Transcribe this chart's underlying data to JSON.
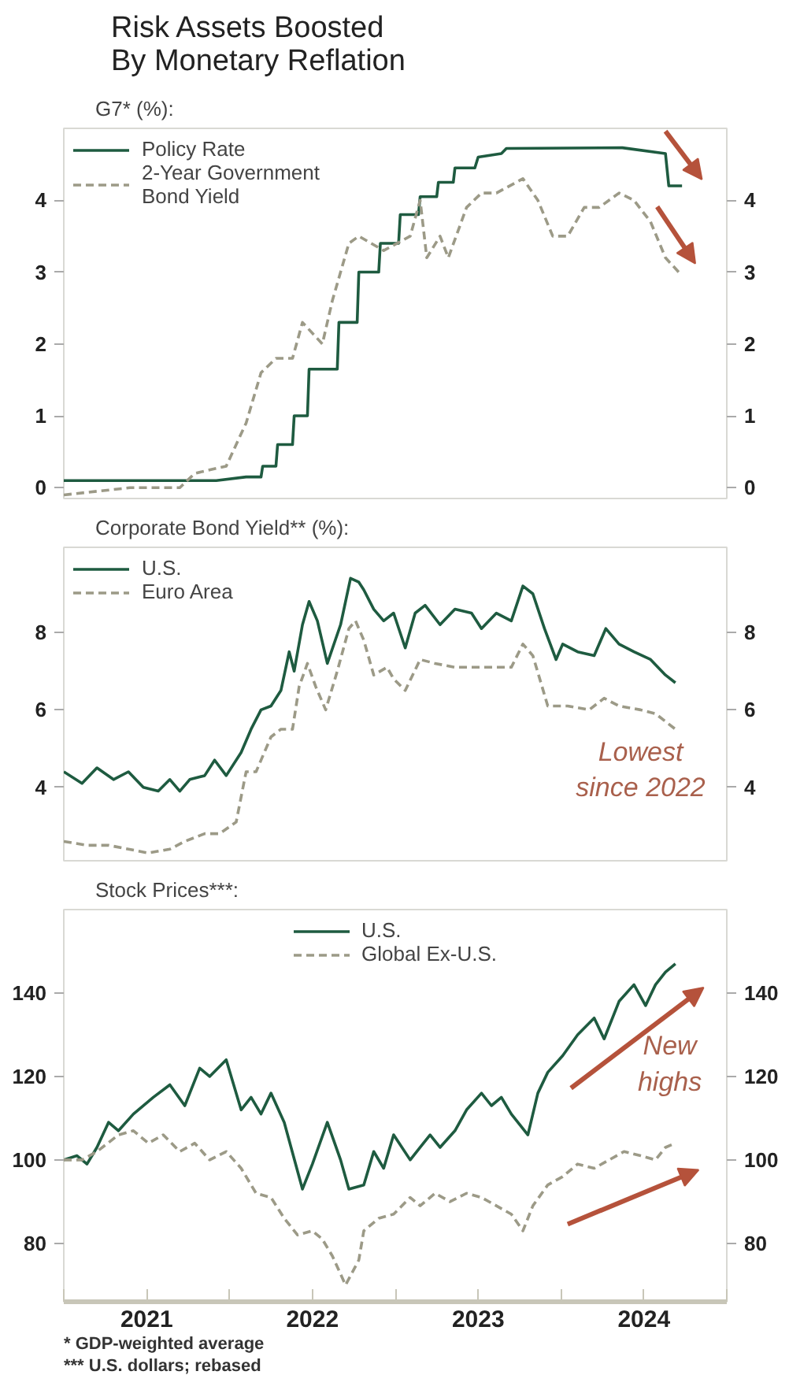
{
  "chart_data": [
    {
      "type": "line",
      "title": "Risk Assets Boosted\nBy Monetary Reflation",
      "subtitle": "G7* (%):",
      "xlim": [
        2021,
        2025
      ],
      "ylim": [
        -0.15,
        5.0
      ],
      "yticks": [
        0,
        1,
        2,
        3,
        4
      ],
      "y2lim": [
        -0.15,
        5.0
      ],
      "y2ticks": [
        0,
        1,
        2,
        3,
        4
      ],
      "tick_labels": "y",
      "legend": "top left",
      "series": [
        {
          "name": "Policy Rate",
          "color": "#1e5b40",
          "line_style": "solid",
          "x": [
            2021.0,
            2021.92,
            2022.1,
            2022.19,
            2022.2,
            2022.28,
            2022.29,
            2022.38,
            2022.39,
            2022.47,
            2022.48,
            2022.65,
            2022.66,
            2022.77,
            2022.78,
            2022.9,
            2022.91,
            2023.02,
            2023.03,
            2023.14,
            2023.15,
            2023.25,
            2023.26,
            2023.35,
            2023.36,
            2023.48,
            2023.5,
            2023.64,
            2023.67,
            2024.37,
            2024.63,
            2024.65,
            2024.73
          ],
          "values": [
            0.1,
            0.1,
            0.15,
            0.15,
            0.3,
            0.3,
            0.6,
            0.6,
            1.0,
            1.0,
            1.65,
            1.65,
            2.3,
            2.3,
            3.0,
            3.0,
            3.4,
            3.4,
            3.8,
            3.8,
            4.05,
            4.05,
            4.25,
            4.25,
            4.45,
            4.45,
            4.6,
            4.65,
            4.72,
            4.73,
            4.65,
            4.2,
            4.2
          ]
        },
        {
          "name": "2-Year Government\nBond Yield",
          "color": "#9c9a87",
          "line_style": "dashed",
          "x": [
            2021.0,
            2021.4,
            2021.7,
            2021.79,
            2021.98,
            2022.1,
            2022.19,
            2022.28,
            2022.38,
            2022.44,
            2022.56,
            2022.62,
            2022.72,
            2022.78,
            2022.93,
            2023.09,
            2023.15,
            2023.19,
            2023.27,
            2023.32,
            2023.43,
            2023.52,
            2023.61,
            2023.77,
            2023.86,
            2023.95,
            2024.04,
            2024.14,
            2024.23,
            2024.35,
            2024.44,
            2024.54,
            2024.63,
            2024.71
          ],
          "values": [
            -0.1,
            0.0,
            0.0,
            0.2,
            0.3,
            0.9,
            1.6,
            1.8,
            1.8,
            2.3,
            2.0,
            2.6,
            3.4,
            3.5,
            3.3,
            3.5,
            4.0,
            3.2,
            3.5,
            3.2,
            3.9,
            4.1,
            4.1,
            4.3,
            4.0,
            3.5,
            3.5,
            3.9,
            3.9,
            4.1,
            4.0,
            3.7,
            3.2,
            3.0
          ]
        }
      ]
    },
    {
      "type": "line",
      "title": "Corporate Bond Yield** (%):",
      "xlim": [
        2021,
        2025
      ],
      "ylim": [
        2.1,
        10.2
      ],
      "yticks": [
        4,
        6,
        8
      ],
      "y2lim": [
        2.1,
        10.2
      ],
      "y2ticks": [
        4,
        6,
        8
      ],
      "tick_labels": "y",
      "legend": "top left",
      "annotations": [
        {
          "text": "Lowest\nsince 2022",
          "x": 2024.48,
          "y": 6.0
        }
      ],
      "series": [
        {
          "name": "U.S.",
          "color": "#1e5b40",
          "line_style": "solid",
          "x": [
            2021.0,
            2021.11,
            2021.2,
            2021.3,
            2021.39,
            2021.48,
            2021.57,
            2021.64,
            2021.7,
            2021.76,
            2021.85,
            2021.91,
            2021.98,
            2022.07,
            2022.13,
            2022.19,
            2022.25,
            2022.31,
            2022.36,
            2022.39,
            2022.44,
            2022.48,
            2022.53,
            2022.59,
            2022.67,
            2022.73,
            2022.78,
            2022.81,
            2022.87,
            2022.93,
            2022.99,
            2023.06,
            2023.12,
            2023.18,
            2023.27,
            2023.36,
            2023.46,
            2023.52,
            2023.61,
            2023.7,
            2023.77,
            2023.83,
            2023.9,
            2023.97,
            2024.01,
            2024.1,
            2024.2,
            2024.27,
            2024.35,
            2024.44,
            2024.54,
            2024.63,
            2024.69
          ],
          "values": [
            4.4,
            4.1,
            4.5,
            4.2,
            4.4,
            4.0,
            3.9,
            4.2,
            3.9,
            4.2,
            4.3,
            4.7,
            4.3,
            4.9,
            5.5,
            6.0,
            6.1,
            6.5,
            7.5,
            7.0,
            8.2,
            8.8,
            8.3,
            7.2,
            8.2,
            9.4,
            9.3,
            9.1,
            8.6,
            8.3,
            8.5,
            7.6,
            8.5,
            8.7,
            8.2,
            8.6,
            8.5,
            8.1,
            8.5,
            8.3,
            9.2,
            9.0,
            8.1,
            7.3,
            7.7,
            7.5,
            7.4,
            8.1,
            7.7,
            7.5,
            7.3,
            6.9,
            6.7
          ]
        },
        {
          "name": "Euro Area",
          "color": "#9c9a87",
          "line_style": "dashed",
          "x": [
            2021.0,
            2021.14,
            2021.27,
            2021.39,
            2021.51,
            2021.64,
            2021.73,
            2021.85,
            2021.94,
            2022.04,
            2022.1,
            2022.16,
            2022.25,
            2022.31,
            2022.38,
            2022.42,
            2022.47,
            2022.52,
            2022.58,
            2022.65,
            2022.72,
            2022.76,
            2022.81,
            2022.87,
            2022.95,
            2022.99,
            2023.06,
            2023.15,
            2023.24,
            2023.36,
            2023.49,
            2023.61,
            2023.7,
            2023.77,
            2023.83,
            2023.92,
            2024.04,
            2024.17,
            2024.26,
            2024.35,
            2024.48,
            2024.57,
            2024.63,
            2024.69
          ],
          "values": [
            2.6,
            2.5,
            2.5,
            2.4,
            2.3,
            2.4,
            2.6,
            2.8,
            2.8,
            3.1,
            4.4,
            4.4,
            5.3,
            5.5,
            5.5,
            6.6,
            7.2,
            6.6,
            6.0,
            7.0,
            8.1,
            8.3,
            7.8,
            6.9,
            7.1,
            6.8,
            6.5,
            7.3,
            7.2,
            7.1,
            7.1,
            7.1,
            7.1,
            7.7,
            7.4,
            6.1,
            6.1,
            6.0,
            6.3,
            6.1,
            6.0,
            5.9,
            5.7,
            5.5
          ]
        }
      ]
    },
    {
      "type": "line",
      "title": "Stock Prices***:",
      "xlim": [
        2021,
        2025
      ],
      "ylim": [
        66,
        160
      ],
      "yticks": [
        80,
        100,
        120,
        140
      ],
      "y2lim": [
        66,
        160
      ],
      "y2ticks": [
        80,
        100,
        120,
        140
      ],
      "legend": "top",
      "xticks": [
        {
          "value": 2021,
          "label": null
        },
        {
          "value": 2021.5,
          "label": "2021"
        },
        {
          "value": 2022,
          "label": null
        },
        {
          "value": 2022.5,
          "label": "2022"
        },
        {
          "value": 2023,
          "label": null
        },
        {
          "value": 2023.5,
          "label": "2023"
        },
        {
          "value": 2024,
          "label": null
        },
        {
          "value": 2024.5,
          "label": "2024"
        },
        {
          "value": 2025,
          "label": null
        }
      ],
      "annotations": [
        {
          "text": "New\nhighs",
          "x": 2024.2,
          "y": 134
        },
        "*   GDP-weighted average",
        "*** U.S. dollars; rebased"
      ],
      "series": [
        {
          "name": "U.S.",
          "color": "#1e5b40",
          "line_style": "solid",
          "x": [
            2021.0,
            2021.08,
            2021.14,
            2021.2,
            2021.27,
            2021.33,
            2021.42,
            2021.54,
            2021.64,
            2021.73,
            2021.82,
            2021.88,
            2021.98,
            2022.07,
            2022.13,
            2022.19,
            2022.25,
            2022.33,
            2022.44,
            2022.5,
            2022.59,
            2022.67,
            2022.72,
            2022.81,
            2022.87,
            2022.93,
            2022.99,
            2023.09,
            2023.15,
            2023.21,
            2023.27,
            2023.36,
            2023.43,
            2023.52,
            2023.58,
            2023.64,
            2023.7,
            2023.8,
            2023.86,
            2023.92,
            2024.01,
            2024.1,
            2024.2,
            2024.26,
            2024.35,
            2024.44,
            2024.51,
            2024.57,
            2024.63,
            2024.69
          ],
          "values": [
            100,
            101,
            99,
            103,
            109,
            107,
            111,
            115,
            118,
            113,
            122,
            120,
            124,
            112,
            115,
            111,
            116,
            109,
            93,
            99,
            109,
            100,
            93,
            94,
            102,
            98,
            106,
            100,
            103,
            106,
            103,
            107,
            112,
            116,
            113,
            115,
            111,
            106,
            116,
            121,
            125,
            130,
            134,
            129,
            138,
            142,
            137,
            142,
            145,
            147
          ]
        },
        {
          "name": "Global Ex-U.S.",
          "color": "#9c9a87",
          "line_style": "dashed",
          "x": [
            2021.0,
            2021.11,
            2021.2,
            2021.33,
            2021.42,
            2021.51,
            2021.6,
            2021.7,
            2021.79,
            2021.88,
            2021.98,
            2022.07,
            2022.16,
            2022.25,
            2022.33,
            2022.41,
            2022.5,
            2022.56,
            2022.62,
            2022.7,
            2022.78,
            2022.81,
            2022.9,
            2022.99,
            2023.09,
            2023.15,
            2023.24,
            2023.33,
            2023.43,
            2023.52,
            2023.61,
            2023.7,
            2023.77,
            2023.83,
            2023.92,
            2024.01,
            2024.1,
            2024.2,
            2024.29,
            2024.38,
            2024.48,
            2024.57,
            2024.63,
            2024.69
          ],
          "values": [
            100,
            100,
            102,
            106,
            107,
            104,
            106,
            102,
            104,
            100,
            102,
            98,
            92,
            91,
            86,
            82,
            83,
            81,
            77,
            70,
            76,
            83,
            86,
            87,
            91,
            89,
            92,
            90,
            92,
            91,
            89,
            87,
            83,
            89,
            94,
            96,
            99,
            98,
            100,
            102,
            101,
            100,
            103,
            104
          ]
        }
      ]
    }
  ]
}
